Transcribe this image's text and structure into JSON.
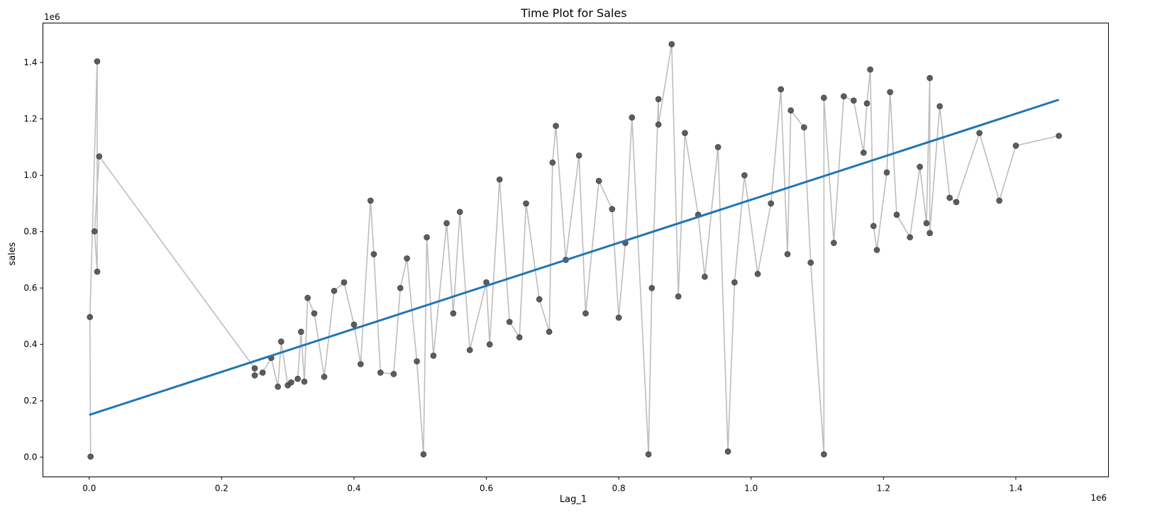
{
  "chart_data": {
    "type": "scatter",
    "title": "Time Plot for Sales",
    "xlabel": "Lag_1",
    "ylabel": "sales",
    "x_offset_label": "1e6",
    "y_offset_label": "1e6",
    "xlim": [
      -70000,
      1540000
    ],
    "ylim": [
      -70000,
      1540000
    ],
    "xticks": [
      0,
      200000,
      400000,
      600000,
      800000,
      1000000,
      1200000,
      1400000
    ],
    "xtick_labels": [
      "0.0",
      "0.2",
      "0.4",
      "0.6",
      "0.8",
      "1.0",
      "1.2",
      "1.4"
    ],
    "yticks": [
      0,
      200000,
      400000,
      600000,
      800000,
      1000000,
      1200000,
      1400000
    ],
    "ytick_labels": [
      "0.0",
      "0.2",
      "0.4",
      "0.6",
      "0.8",
      "1.0",
      "1.2",
      "1.4"
    ],
    "grid": false,
    "colors": {
      "points": "#4d4d4d",
      "connecting_line": "#bdbdbd",
      "regression_line": "#1f77b4"
    },
    "points": [
      [
        2000,
        2000
      ],
      [
        1000,
        497000
      ],
      [
        12000,
        1404000
      ],
      [
        12000,
        658000
      ],
      [
        8000,
        801000
      ],
      [
        15000,
        1067000
      ],
      [
        250000,
        315000
      ],
      [
        250000,
        290000
      ],
      [
        262000,
        300000
      ],
      [
        275000,
        352000
      ],
      [
        285000,
        250000
      ],
      [
        290000,
        410000
      ],
      [
        300000,
        255000
      ],
      [
        305000,
        265000
      ],
      [
        315000,
        278000
      ],
      [
        320000,
        445000
      ],
      [
        325000,
        268000
      ],
      [
        330000,
        565000
      ],
      [
        340000,
        510000
      ],
      [
        355000,
        285000
      ],
      [
        370000,
        590000
      ],
      [
        385000,
        620000
      ],
      [
        400000,
        470000
      ],
      [
        410000,
        330000
      ],
      [
        425000,
        910000
      ],
      [
        430000,
        720000
      ],
      [
        440000,
        300000
      ],
      [
        460000,
        295000
      ],
      [
        470000,
        600000
      ],
      [
        480000,
        705000
      ],
      [
        495000,
        340000
      ],
      [
        505000,
        10000
      ],
      [
        510000,
        780000
      ],
      [
        520000,
        360000
      ],
      [
        540000,
        830000
      ],
      [
        550000,
        510000
      ],
      [
        560000,
        870000
      ],
      [
        575000,
        380000
      ],
      [
        600000,
        620000
      ],
      [
        605000,
        400000
      ],
      [
        620000,
        985000
      ],
      [
        635000,
        480000
      ],
      [
        650000,
        425000
      ],
      [
        660000,
        900000
      ],
      [
        680000,
        560000
      ],
      [
        695000,
        445000
      ],
      [
        700000,
        1045000
      ],
      [
        705000,
        1175000
      ],
      [
        720000,
        700000
      ],
      [
        740000,
        1070000
      ],
      [
        750000,
        510000
      ],
      [
        770000,
        980000
      ],
      [
        790000,
        880000
      ],
      [
        800000,
        495000
      ],
      [
        810000,
        760000
      ],
      [
        820000,
        1205000
      ],
      [
        845000,
        10000
      ],
      [
        850000,
        600000
      ],
      [
        860000,
        1270000
      ],
      [
        860000,
        1180000
      ],
      [
        880000,
        1465000
      ],
      [
        890000,
        570000
      ],
      [
        900000,
        1150000
      ],
      [
        920000,
        860000
      ],
      [
        930000,
        640000
      ],
      [
        950000,
        1100000
      ],
      [
        965000,
        20000
      ],
      [
        975000,
        620000
      ],
      [
        990000,
        1000000
      ],
      [
        1010000,
        650000
      ],
      [
        1030000,
        900000
      ],
      [
        1045000,
        1305000
      ],
      [
        1055000,
        720000
      ],
      [
        1060000,
        1230000
      ],
      [
        1080000,
        1170000
      ],
      [
        1090000,
        690000
      ],
      [
        1110000,
        10000
      ],
      [
        1110000,
        1275000
      ],
      [
        1125000,
        760000
      ],
      [
        1140000,
        1280000
      ],
      [
        1155000,
        1265000
      ],
      [
        1170000,
        1080000
      ],
      [
        1175000,
        1255000
      ],
      [
        1180000,
        1375000
      ],
      [
        1185000,
        820000
      ],
      [
        1190000,
        735000
      ],
      [
        1205000,
        1010000
      ],
      [
        1210000,
        1295000
      ],
      [
        1220000,
        860000
      ],
      [
        1240000,
        780000
      ],
      [
        1255000,
        1030000
      ],
      [
        1265000,
        830000
      ],
      [
        1270000,
        1345000
      ],
      [
        1270000,
        795000
      ],
      [
        1285000,
        1245000
      ],
      [
        1300000,
        920000
      ],
      [
        1310000,
        905000
      ],
      [
        1345000,
        1150000
      ],
      [
        1375000,
        910000
      ],
      [
        1400000,
        1105000
      ],
      [
        1465000,
        1140000
      ]
    ],
    "regression": {
      "x": [
        0,
        1465000
      ],
      "y": [
        150000,
        1268000
      ]
    }
  }
}
